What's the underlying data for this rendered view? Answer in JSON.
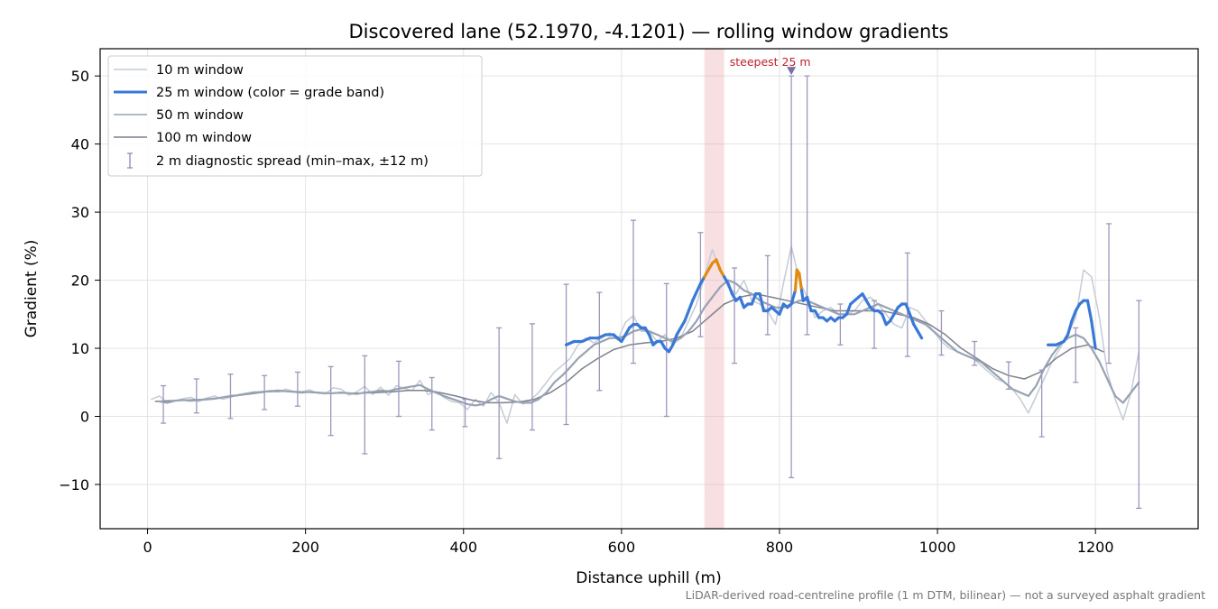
{
  "chart_data": {
    "type": "line",
    "title": "Discovered lane (52.1970, -4.1201) — rolling window gradients",
    "xlabel": "Distance uphill (m)",
    "ylabel": "Gradient (%)",
    "xlim": [
      -60,
      1330
    ],
    "ylim": [
      -16.5,
      54
    ],
    "x_ticks": [
      0,
      200,
      400,
      600,
      800,
      1000,
      1200
    ],
    "x_tick_labels": [
      "0",
      "200",
      "400",
      "600",
      "800",
      "1000",
      "1200"
    ],
    "y_ticks": [
      -10,
      0,
      10,
      20,
      30,
      40,
      50
    ],
    "y_tick_labels": [
      "−10",
      "0",
      "10",
      "20",
      "30",
      "40",
      "50"
    ],
    "grid": true,
    "legend_position": "top-left",
    "colors": {
      "w10": "#c5ccd6",
      "w25": "#3a78d8",
      "w25_steep": "#e08a10",
      "w50": "#97a2b2",
      "w100": "#7d818d",
      "spread": "#9d97bd",
      "highlight": "#e9a3ab",
      "annotation": "#c0202c"
    },
    "series": [
      {
        "name": "10 m window",
        "x": [
          5,
          15,
          25,
          35,
          45,
          55,
          65,
          75,
          85,
          95,
          105,
          115,
          125,
          135,
          145,
          155,
          165,
          175,
          185,
          195,
          205,
          215,
          225,
          235,
          245,
          255,
          265,
          275,
          285,
          295,
          305,
          315,
          325,
          335,
          345,
          355,
          365,
          375,
          385,
          395,
          405,
          415,
          425,
          435,
          445,
          455,
          465,
          475,
          485,
          495,
          505,
          515,
          525,
          535,
          545,
          555,
          565,
          575,
          585,
          595,
          605,
          615,
          625,
          635,
          645,
          655,
          665,
          675,
          685,
          695,
          705,
          715,
          725,
          735,
          745,
          755,
          765,
          775,
          785,
          795,
          805,
          815,
          825,
          835,
          845,
          855,
          865,
          875,
          885,
          895,
          905,
          915,
          925,
          935,
          945,
          955,
          965,
          975,
          985,
          995,
          1005,
          1015,
          1025,
          1035,
          1045,
          1055,
          1065,
          1075,
          1085,
          1095,
          1105,
          1115,
          1125,
          1135,
          1145,
          1155,
          1165,
          1175,
          1185,
          1195,
          1205,
          1215,
          1225,
          1235,
          1245,
          1255
        ],
        "values": [
          2.5,
          3.0,
          2.0,
          2.3,
          2.6,
          2.8,
          2.2,
          2.7,
          3.0,
          2.5,
          2.8,
          3.2,
          3.4,
          3.6,
          3.5,
          3.8,
          3.6,
          4.0,
          3.7,
          3.6,
          3.9,
          3.4,
          3.3,
          4.2,
          4.0,
          3.1,
          3.6,
          4.4,
          3.2,
          4.3,
          3.1,
          4.5,
          4.1,
          3.8,
          5.3,
          3.2,
          3.7,
          2.8,
          2.2,
          2.0,
          1.0,
          2.5,
          1.5,
          3.5,
          2.0,
          -1.0,
          3.2,
          1.8,
          2.4,
          3.5,
          5.0,
          6.5,
          7.5,
          8.5,
          10.5,
          11.5,
          10.8,
          11.5,
          12.3,
          11.2,
          13.8,
          14.8,
          12.5,
          12.5,
          11.0,
          12.0,
          10.5,
          11.5,
          14.0,
          16.5,
          20.5,
          24.5,
          21.5,
          19.0,
          18.0,
          20.0,
          17.0,
          16.5,
          15.5,
          13.5,
          19.5,
          25.0,
          20.0,
          17.5,
          14.5,
          15.5,
          16.0,
          15.0,
          15.0,
          15.5,
          17.0,
          17.5,
          16.5,
          15.0,
          13.5,
          13.0,
          16.0,
          15.5,
          14.0,
          12.5,
          11.0,
          10.0,
          9.5,
          9.0,
          8.5,
          7.5,
          6.5,
          5.5,
          5.0,
          4.0,
          2.5,
          0.5,
          3.0,
          5.5,
          8.0,
          10.0,
          12.0,
          14.5,
          21.5,
          20.5,
          14.5,
          6.5,
          2.5,
          -0.5,
          3.5,
          9.5
        ]
      },
      {
        "name": "25 m window (color = grade band)",
        "x": [
          530,
          540,
          550,
          560,
          570,
          580,
          590,
          600,
          610,
          615,
          620,
          625,
          630,
          635,
          640,
          645,
          650,
          655,
          660,
          665,
          670,
          680,
          690,
          700,
          705,
          710,
          715,
          720,
          725,
          730,
          735,
          740,
          745,
          750,
          755,
          760,
          765,
          770,
          775,
          780,
          785,
          790,
          795,
          800,
          805,
          810,
          815,
          820,
          822,
          825,
          828,
          830,
          835,
          840,
          845,
          850,
          855,
          860,
          865,
          870,
          875,
          880,
          885,
          890,
          895,
          900,
          905,
          910,
          915,
          920,
          925,
          930,
          935,
          940,
          945,
          950,
          955,
          960,
          965,
          970,
          975,
          980,
          1140,
          1150,
          1160,
          1165,
          1170,
          1175,
          1180,
          1185,
          1190,
          1195,
          1200
        ],
        "values": [
          10.5,
          11.0,
          11.0,
          11.5,
          11.5,
          12.0,
          12.0,
          11.0,
          13.0,
          13.5,
          13.5,
          13.0,
          13.0,
          12.0,
          10.5,
          11.0,
          11.0,
          10.0,
          9.5,
          10.5,
          12.0,
          14.0,
          17.0,
          19.5,
          20.5,
          21.5,
          22.5,
          23.0,
          21.5,
          20.5,
          19.5,
          18.0,
          17.0,
          17.5,
          16.0,
          16.5,
          16.5,
          18.0,
          18.0,
          15.5,
          15.5,
          16.0,
          15.5,
          15.0,
          16.5,
          16.0,
          16.5,
          18.5,
          21.5,
          21.0,
          18.5,
          17.0,
          17.5,
          15.5,
          15.5,
          14.5,
          14.5,
          14.0,
          14.5,
          14.0,
          14.5,
          14.5,
          15.0,
          16.5,
          17.0,
          17.5,
          18.0,
          17.0,
          16.0,
          15.5,
          15.5,
          15.0,
          13.5,
          14.0,
          15.0,
          16.0,
          16.5,
          16.5,
          15.0,
          13.5,
          12.5,
          11.5,
          10.5,
          10.5,
          11.0,
          12.0,
          14.0,
          15.5,
          16.5,
          17.0,
          17.0,
          14.0,
          10.0
        ],
        "steep_ranges": [
          [
            703,
            730
          ],
          [
            818,
            828
          ]
        ]
      },
      {
        "name": "50 m window",
        "x": [
          15,
          25,
          35,
          45,
          55,
          65,
          75,
          85,
          95,
          105,
          115,
          125,
          135,
          145,
          155,
          165,
          175,
          185,
          195,
          205,
          215,
          225,
          235,
          245,
          255,
          265,
          275,
          285,
          295,
          305,
          315,
          325,
          335,
          345,
          355,
          365,
          375,
          385,
          395,
          405,
          415,
          425,
          435,
          445,
          455,
          465,
          475,
          485,
          495,
          505,
          515,
          525,
          535,
          545,
          555,
          565,
          575,
          585,
          595,
          605,
          615,
          625,
          635,
          645,
          655,
          665,
          675,
          685,
          695,
          705,
          715,
          725,
          735,
          745,
          755,
          765,
          775,
          785,
          795,
          805,
          815,
          825,
          835,
          845,
          855,
          865,
          875,
          885,
          895,
          905,
          915,
          925,
          935,
          945,
          955,
          965,
          975,
          985,
          995,
          1005,
          1015,
          1025,
          1035,
          1045,
          1055,
          1065,
          1075,
          1085,
          1095,
          1105,
          1115,
          1125,
          1135,
          1145,
          1155,
          1165,
          1175,
          1185,
          1195,
          1205,
          1215,
          1225,
          1235,
          1245,
          1255
        ],
        "values": [
          2.2,
          2.0,
          2.3,
          2.4,
          2.3,
          2.4,
          2.5,
          2.6,
          2.8,
          3.0,
          3.1,
          3.3,
          3.5,
          3.6,
          3.7,
          3.8,
          3.7,
          3.6,
          3.5,
          3.6,
          3.5,
          3.4,
          3.4,
          3.5,
          3.4,
          3.3,
          3.5,
          3.6,
          3.8,
          3.7,
          4.0,
          4.2,
          4.4,
          4.6,
          4.0,
          3.5,
          3.0,
          2.6,
          2.2,
          1.8,
          1.6,
          1.8,
          2.5,
          3.0,
          2.6,
          2.2,
          2.0,
          2.0,
          2.5,
          3.5,
          5.0,
          6.0,
          7.2,
          8.5,
          9.5,
          10.5,
          11.0,
          11.5,
          11.5,
          11.8,
          12.5,
          12.8,
          12.5,
          12.0,
          11.5,
          11.0,
          11.5,
          12.5,
          14.0,
          16.0,
          17.5,
          19.0,
          20.0,
          19.5,
          18.5,
          18.0,
          17.0,
          16.5,
          16.0,
          16.0,
          16.5,
          17.0,
          17.0,
          16.5,
          16.0,
          15.5,
          15.0,
          15.0,
          15.0,
          15.5,
          16.0,
          16.5,
          16.0,
          15.5,
          15.0,
          14.5,
          14.0,
          13.5,
          12.5,
          11.5,
          10.5,
          9.5,
          9.0,
          8.5,
          8.0,
          7.0,
          6.0,
          5.0,
          4.0,
          3.5,
          3.0,
          4.5,
          7.0,
          9.0,
          10.5,
          11.5,
          12.0,
          11.5,
          10.0,
          8.0,
          5.5,
          3.0,
          2.0,
          3.5,
          5.0
        ]
      },
      {
        "name": "100 m window",
        "x": [
          10,
          30,
          50,
          70,
          90,
          110,
          130,
          150,
          170,
          190,
          210,
          230,
          250,
          270,
          290,
          310,
          330,
          350,
          370,
          390,
          410,
          430,
          450,
          470,
          490,
          510,
          530,
          550,
          570,
          590,
          610,
          630,
          650,
          670,
          690,
          710,
          730,
          750,
          770,
          790,
          810,
          830,
          850,
          870,
          890,
          910,
          930,
          950,
          970,
          990,
          1010,
          1030,
          1050,
          1070,
          1090,
          1110,
          1130,
          1150,
          1170,
          1190,
          1210
        ],
        "values": [
          2.2,
          2.3,
          2.4,
          2.5,
          2.7,
          3.0,
          3.3,
          3.6,
          3.7,
          3.6,
          3.5,
          3.4,
          3.4,
          3.4,
          3.5,
          3.6,
          3.8,
          3.8,
          3.5,
          3.0,
          2.4,
          2.0,
          2.0,
          2.1,
          2.5,
          3.5,
          5.0,
          7.0,
          8.5,
          9.8,
          10.5,
          10.8,
          11.0,
          11.5,
          12.5,
          14.5,
          16.5,
          17.5,
          18.0,
          17.5,
          17.0,
          16.5,
          16.0,
          15.5,
          15.5,
          15.5,
          15.5,
          15.0,
          14.5,
          13.5,
          12.0,
          10.0,
          8.5,
          7.0,
          6.0,
          5.5,
          6.5,
          8.5,
          10.0,
          10.5,
          9.5
        ]
      }
    ],
    "spread": {
      "name": "2 m diagnostic spread (min–max, ±12 m)",
      "x": [
        20,
        62,
        105,
        148,
        190,
        232,
        275,
        318,
        360,
        402,
        445,
        487,
        530,
        572,
        615,
        657,
        700,
        743,
        785,
        815,
        835,
        877,
        920,
        962,
        1005,
        1047,
        1090,
        1132,
        1175,
        1217,
        1255
      ],
      "low": [
        -1.0,
        0.5,
        -0.3,
        1.0,
        1.5,
        -2.8,
        -5.5,
        0.0,
        -2.0,
        -1.5,
        -6.2,
        -2.0,
        -1.2,
        3.8,
        7.8,
        0.0,
        11.7,
        7.8,
        12.0,
        -9.0,
        12.0,
        10.5,
        10.0,
        8.8,
        9.0,
        7.5,
        4.0,
        -3.0,
        5.0,
        7.8,
        -13.5
      ],
      "high": [
        4.5,
        5.5,
        6.2,
        6.0,
        6.5,
        7.3,
        8.9,
        8.1,
        5.7,
        2.5,
        13.0,
        13.6,
        19.4,
        18.2,
        28.8,
        19.5,
        27.0,
        21.8,
        23.6,
        50.0,
        50.0,
        16.5,
        17.0,
        24.0,
        15.5,
        11.0,
        8.0,
        6.8,
        13.0,
        28.3,
        17.0
      ]
    },
    "steepest_band": {
      "x0": 705,
      "x1": 730
    },
    "steepest_label": "steepest 25 m",
    "steepest_marker": {
      "x": 815,
      "y": 50.8
    },
    "footnote": "LiDAR-derived road-centreline profile (1 m DTM, bilinear) — not a surveyed asphalt gradient"
  }
}
